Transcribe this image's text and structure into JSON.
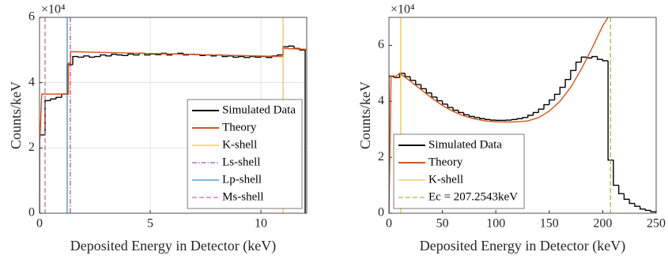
{
  "chart_data": [
    {
      "type": "histogram",
      "x_label": "Deposited Energy in Detector (keV)",
      "y_label": "Counts/keV",
      "y_scale_label": "×10⁴",
      "xlim": [
        0,
        12.07
      ],
      "ylim": [
        0,
        6
      ],
      "xticks": [
        0,
        5,
        10
      ],
      "yticks": [
        0,
        2,
        4,
        6
      ],
      "grid": true,
      "legend": "lower right",
      "series": [
        {
          "name": "Simulated Data",
          "kind": "step",
          "color": "#000000",
          "style": "solid",
          "bins": [
            0,
            0.25,
            0.5,
            0.75,
            1,
            1.25,
            1.5,
            1.75,
            2,
            2.25,
            2.5,
            2.75,
            3,
            3.25,
            3.5,
            3.75,
            4,
            4.25,
            4.5,
            4.75,
            5,
            5.25,
            5.5,
            5.75,
            6,
            6.25,
            6.5,
            6.75,
            7,
            7.25,
            7.5,
            7.75,
            8,
            8.25,
            8.5,
            8.75,
            9,
            9.25,
            9.5,
            9.75,
            10,
            10.25,
            10.5,
            10.75,
            11,
            11.25,
            11.5,
            11.75,
            12
          ],
          "values": [
            2.4,
            3.45,
            3.5,
            3.55,
            3.65,
            4.55,
            4.8,
            4.78,
            4.82,
            4.78,
            4.8,
            4.85,
            4.82,
            4.87,
            4.85,
            4.83,
            4.88,
            4.85,
            4.9,
            4.85,
            4.88,
            4.86,
            4.9,
            4.85,
            4.88,
            4.9,
            4.85,
            4.87,
            4.86,
            4.83,
            4.85,
            4.82,
            4.85,
            4.8,
            4.82,
            4.78,
            4.8,
            4.77,
            4.8,
            4.78,
            4.8,
            4.77,
            4.82,
            4.85,
            5.1,
            5.12,
            5.05,
            5.0
          ]
        },
        {
          "name": "Theory",
          "kind": "line",
          "color": "#D95319",
          "style": "solid",
          "x": [
            0,
            0.02,
            0.1,
            1.3,
            1.3,
            1.4,
            1.4,
            11.0,
            11.0,
            12.07
          ],
          "values": [
            2.3,
            2.3,
            3.65,
            3.65,
            4.6,
            4.6,
            4.95,
            4.8,
            5.05,
            5.02
          ]
        },
        {
          "name": "K-shell",
          "kind": "vline",
          "color": "#EDB120",
          "style": "solid",
          "x": 11.0
        },
        {
          "name": "Ls-shell",
          "kind": "vline",
          "color": "#7E2F8E",
          "style": "dashdot",
          "x": 1.39
        },
        {
          "name": "Lp-shell",
          "kind": "vline",
          "color": "#0072BD",
          "style": "solid",
          "x": 1.25
        },
        {
          "name": "Ms-shell",
          "kind": "vline",
          "color": "#C0407A",
          "style": "dashed",
          "x": 0.25
        }
      ]
    },
    {
      "type": "histogram",
      "x_label": "Deposited Energy in Detector (keV)",
      "y_label": "Counts/keV",
      "y_scale_label": "×10⁴",
      "xlim": [
        0,
        250
      ],
      "ylim": [
        0,
        7
      ],
      "xticks": [
        0,
        50,
        100,
        150,
        200,
        250
      ],
      "yticks": [
        0,
        2,
        4,
        6
      ],
      "grid": false,
      "legend": "lower left",
      "series": [
        {
          "name": "Simulated Data",
          "kind": "step",
          "color": "#000000",
          "style": "solid",
          "bins": [
            0,
            5,
            10,
            15,
            20,
            25,
            30,
            35,
            40,
            45,
            50,
            55,
            60,
            65,
            70,
            75,
            80,
            85,
            90,
            95,
            100,
            105,
            110,
            115,
            120,
            125,
            130,
            135,
            140,
            145,
            150,
            155,
            160,
            165,
            170,
            175,
            180,
            185,
            190,
            195,
            200,
            205,
            210,
            215,
            220,
            225,
            230,
            235,
            240,
            245,
            250
          ],
          "values": [
            4.9,
            4.85,
            5.0,
            4.88,
            4.75,
            4.6,
            4.45,
            4.3,
            4.15,
            4.02,
            3.9,
            3.78,
            3.68,
            3.6,
            3.52,
            3.46,
            3.42,
            3.38,
            3.35,
            3.33,
            3.32,
            3.32,
            3.33,
            3.35,
            3.38,
            3.42,
            3.5,
            3.6,
            3.72,
            3.88,
            4.05,
            4.25,
            4.5,
            4.78,
            5.1,
            5.4,
            5.58,
            5.55,
            5.6,
            5.5,
            5.45,
            1.9,
            1.0,
            0.7,
            0.5,
            0.35,
            0.25,
            0.15,
            0.1,
            0.05
          ]
        },
        {
          "name": "Theory",
          "kind": "line",
          "color": "#D95319",
          "style": "solid",
          "x": [
            0,
            2,
            5,
            10,
            20,
            30,
            40,
            50,
            60,
            70,
            80,
            90,
            100,
            110,
            120,
            130,
            140,
            150,
            160,
            170,
            180,
            190,
            200,
            205
          ],
          "values": [
            0,
            4.9,
            4.85,
            5.0,
            4.72,
            4.42,
            4.12,
            3.85,
            3.64,
            3.48,
            3.37,
            3.3,
            3.27,
            3.26,
            3.27,
            3.3,
            3.42,
            3.65,
            4.0,
            4.5,
            5.15,
            5.9,
            6.7,
            7.0
          ]
        },
        {
          "name": "K-shell",
          "kind": "vline",
          "color": "#EDB120",
          "style": "solid",
          "x": 11
        },
        {
          "name": "Ec = 207.2543keV",
          "kind": "vline",
          "color": "#77AC30",
          "style": "dashed",
          "x": 207.2543
        }
      ]
    }
  ]
}
